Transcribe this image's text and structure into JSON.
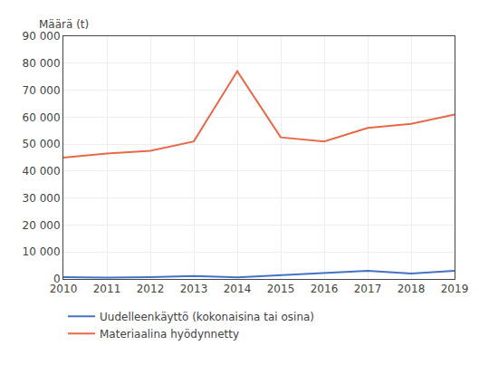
{
  "chart_data": {
    "type": "line",
    "ylabel": "Määrä (t)",
    "x": [
      2010,
      2011,
      2012,
      2013,
      2014,
      2015,
      2016,
      2017,
      2018,
      2019
    ],
    "series": [
      {
        "name": "Uudelleenkäyttö (kokonaisina tai osina)",
        "color": "#4472C4",
        "values": [
          700,
          500,
          700,
          1100,
          600,
          1400,
          2200,
          3000,
          2000,
          3000
        ]
      },
      {
        "name": "Materiaalina hyödynnetty",
        "color": "#E8694A",
        "values": [
          45000,
          46500,
          47500,
          51000,
          77000,
          52500,
          51000,
          56000,
          57500,
          61000
        ]
      }
    ],
    "xlim": [
      2010,
      2019
    ],
    "xticks": [
      2010,
      2011,
      2012,
      2013,
      2014,
      2015,
      2016,
      2017,
      2018,
      2019
    ],
    "ylim": [
      0,
      90000
    ],
    "yticks": [
      0,
      {
        "value": 10000,
        "label": "10 000"
      },
      {
        "value": 20000,
        "label": "20 000"
      },
      {
        "value": 30000,
        "label": "30 000"
      },
      {
        "value": 40000,
        "label": "40 000"
      },
      {
        "value": 50000,
        "label": "50 000"
      },
      {
        "value": 60000,
        "label": "60 000"
      },
      {
        "value": 70000,
        "label": "70 000"
      },
      {
        "value": 80000,
        "label": "80 000"
      },
      {
        "value": 90000,
        "label": "90 000"
      }
    ],
    "grid": true,
    "legend": "bottom"
  }
}
